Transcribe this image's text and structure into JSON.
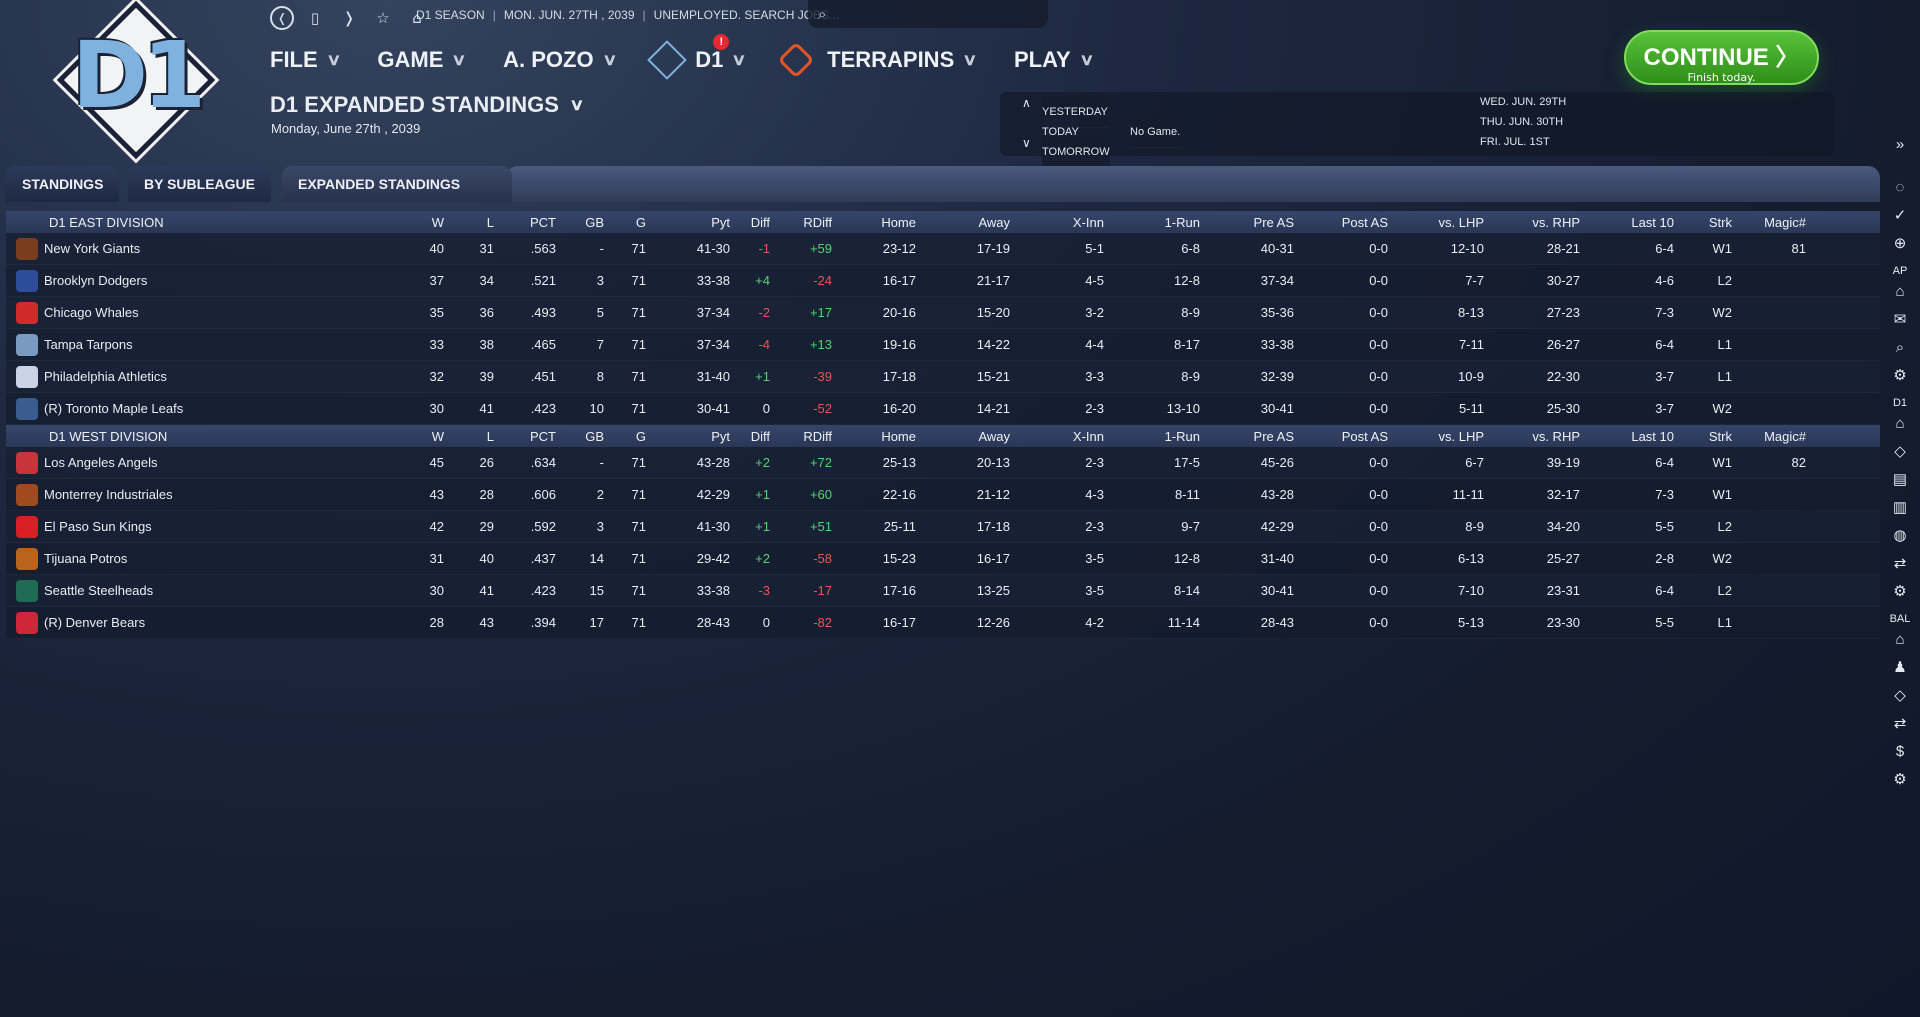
{
  "logo": {
    "text": "D1"
  },
  "nav": {
    "icons": [
      "back-icon",
      "bookmark-icon",
      "forward-icon",
      "star-icon",
      "home-icon"
    ],
    "context": [
      "D1 SEASON",
      "MON. JUN. 27TH , 2039",
      "UNEMPLOYED. SEARCH JOBS..."
    ],
    "search_placeholder": ""
  },
  "menu": {
    "file": "FILE",
    "game": "GAME",
    "manager": "A. POZO",
    "league": "D1",
    "league_alert": "!",
    "team": "TERRAPINS",
    "play": "PLAY"
  },
  "continue": {
    "label": "CONTINUE",
    "sub": "Finish today."
  },
  "page": {
    "title": "D1 EXPANDED STANDINGS",
    "date": "Monday, June 27th , 2039"
  },
  "schedule": {
    "yesterday": "YESTERDAY",
    "today": "TODAY",
    "today_value": "No Game.",
    "tomorrow": "TOMORROW",
    "dates": [
      "WED. JUN. 29TH",
      "THU. JUN. 30TH",
      "FRI. JUL. 1ST"
    ]
  },
  "tabs": [
    "STANDINGS",
    "BY SUBLEAGUE",
    "EXPANDED STANDINGS"
  ],
  "columns": [
    "W",
    "L",
    "PCT",
    "GB",
    "G",
    "Pyt",
    "Diff",
    "RDiff",
    "Home",
    "Away",
    "X-Inn",
    "1-Run",
    "Pre AS",
    "Post AS",
    "vs. LHP",
    "vs. RHP",
    "Last 10",
    "Strk",
    "Magic#"
  ],
  "divisions": [
    {
      "name": "D1 EAST DIVISION",
      "teams": [
        {
          "name": "New York Giants",
          "color": "#7a3d1e",
          "cells": [
            "40",
            "31",
            ".563",
            "-",
            "71",
            "41-30",
            "-1",
            "+59",
            "23-12",
            "17-19",
            "5-1",
            "6-8",
            "40-31",
            "0-0",
            "12-10",
            "28-21",
            "6-4",
            "W1",
            "81"
          ]
        },
        {
          "name": "Brooklyn Dodgers",
          "color": "#2d4d9a",
          "cells": [
            "37",
            "34",
            ".521",
            "3",
            "71",
            "33-38",
            "+4",
            "-24",
            "16-17",
            "21-17",
            "4-5",
            "12-8",
            "37-34",
            "0-0",
            "7-7",
            "30-27",
            "4-6",
            "L2",
            ""
          ]
        },
        {
          "name": "Chicago Whales",
          "color": "#d12a2a",
          "cells": [
            "35",
            "36",
            ".493",
            "5",
            "71",
            "37-34",
            "-2",
            "+17",
            "20-16",
            "15-20",
            "3-2",
            "8-9",
            "35-36",
            "0-0",
            "8-13",
            "27-23",
            "7-3",
            "W2",
            ""
          ]
        },
        {
          "name": "Tampa Tarpons",
          "color": "#7b9ac0",
          "cells": [
            "33",
            "38",
            ".465",
            "7",
            "71",
            "37-34",
            "-4",
            "+13",
            "19-16",
            "14-22",
            "4-4",
            "8-17",
            "33-38",
            "0-0",
            "7-11",
            "26-27",
            "6-4",
            "L1",
            ""
          ]
        },
        {
          "name": "Philadelphia Athletics",
          "color": "#c9d3e6",
          "cells": [
            "32",
            "39",
            ".451",
            "8",
            "71",
            "31-40",
            "+1",
            "-39",
            "17-18",
            "15-21",
            "3-3",
            "8-9",
            "32-39",
            "0-0",
            "10-9",
            "22-30",
            "3-7",
            "L1",
            ""
          ]
        },
        {
          "name": "(R) Toronto Maple Leafs",
          "color": "#3b5c8f",
          "cells": [
            "30",
            "41",
            ".423",
            "10",
            "71",
            "30-41",
            "0",
            "-52",
            "16-20",
            "14-21",
            "2-3",
            "13-10",
            "30-41",
            "0-0",
            "5-11",
            "25-30",
            "3-7",
            "W2",
            ""
          ]
        }
      ]
    },
    {
      "name": "D1 WEST DIVISION",
      "teams": [
        {
          "name": "Los Angeles Angels",
          "color": "#c8343b",
          "cells": [
            "45",
            "26",
            ".634",
            "-",
            "71",
            "43-28",
            "+2",
            "+72",
            "25-13",
            "20-13",
            "2-3",
            "17-5",
            "45-26",
            "0-0",
            "6-7",
            "39-19",
            "6-4",
            "W1",
            "82"
          ]
        },
        {
          "name": "Monterrey Industriales",
          "color": "#a04a1f",
          "cells": [
            "43",
            "28",
            ".606",
            "2",
            "71",
            "42-29",
            "+1",
            "+60",
            "22-16",
            "21-12",
            "4-3",
            "8-11",
            "43-28",
            "0-0",
            "11-11",
            "32-17",
            "7-3",
            "W1",
            ""
          ]
        },
        {
          "name": "El Paso Sun Kings",
          "color": "#d81f26",
          "cells": [
            "42",
            "29",
            ".592",
            "3",
            "71",
            "41-30",
            "+1",
            "+51",
            "25-11",
            "17-18",
            "2-3",
            "9-7",
            "42-29",
            "0-0",
            "8-9",
            "34-20",
            "5-5",
            "L2",
            ""
          ]
        },
        {
          "name": "Tijuana Potros",
          "color": "#b9641d",
          "cells": [
            "31",
            "40",
            ".437",
            "14",
            "71",
            "29-42",
            "+2",
            "-58",
            "15-23",
            "16-17",
            "3-5",
            "12-8",
            "31-40",
            "0-0",
            "6-13",
            "25-27",
            "2-8",
            "W2",
            ""
          ]
        },
        {
          "name": "Seattle Steelheads",
          "color": "#1f6b54",
          "cells": [
            "30",
            "41",
            ".423",
            "15",
            "71",
            "33-38",
            "-3",
            "-17",
            "17-16",
            "13-25",
            "3-5",
            "8-14",
            "30-41",
            "0-0",
            "7-10",
            "23-31",
            "6-4",
            "L2",
            ""
          ]
        },
        {
          "name": "(R) Denver Bears",
          "color": "#d0263a",
          "cells": [
            "28",
            "43",
            ".394",
            "17",
            "71",
            "28-43",
            "0",
            "-82",
            "16-17",
            "12-26",
            "4-2",
            "11-14",
            "28-43",
            "0-0",
            "5-13",
            "23-30",
            "5-5",
            "L1",
            ""
          ]
        }
      ]
    }
  ],
  "rail": {
    "labels": [
      "AP",
      "D1",
      "BAL"
    ],
    "collapse": "»"
  },
  "colors": {
    "positive": "#52d46b",
    "negative": "#f05353",
    "accent": "#7fb2df",
    "continue": "#3fa825"
  }
}
